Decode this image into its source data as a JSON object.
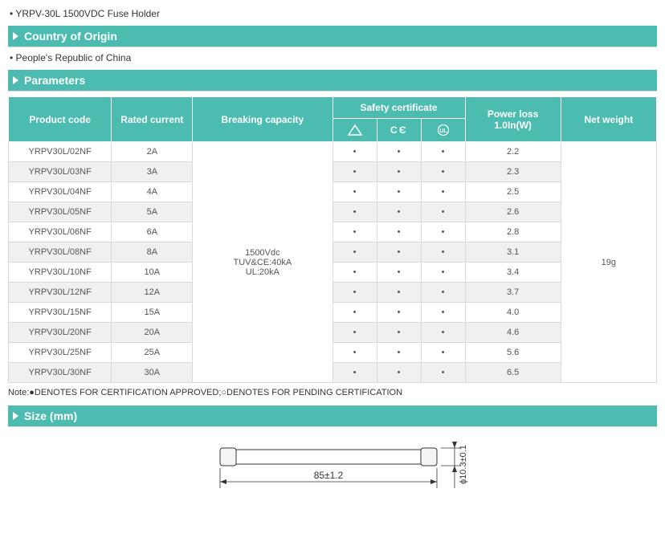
{
  "top_line": "• YRPV-30L 1500VDC Fuse Holder",
  "sections": {
    "origin": {
      "title": "Country of Origin",
      "text": "• People's Republic of China"
    },
    "params": {
      "title": "Parameters"
    },
    "size": {
      "title": "Size (mm)"
    }
  },
  "headers": {
    "product_code": "Product code",
    "rated_current": "Rated current",
    "breaking_capacity": "Breaking capacity",
    "safety_certificate": "Safety certificate",
    "power_loss_top": "Power loss",
    "power_loss_sub": "1.0In(W)",
    "net_weight": "Net weight"
  },
  "breaking_capacity_lines": [
    "1500Vdc",
    "TUV&CE:40kA",
    "UL:20kA"
  ],
  "net_weight_value": "19g",
  "rows": [
    {
      "code": "YRPV30L/02NF",
      "rated": "2A",
      "s1": "•",
      "s2": "•",
      "s3": "•",
      "power": "2.2"
    },
    {
      "code": "YRPV30L/03NF",
      "rated": "3A",
      "s1": "•",
      "s2": "•",
      "s3": "•",
      "power": "2.3"
    },
    {
      "code": "YRPV30L/04NF",
      "rated": "4A",
      "s1": "•",
      "s2": "•",
      "s3": "•",
      "power": "2.5"
    },
    {
      "code": "YRPV30L/05NF",
      "rated": "5A",
      "s1": "•",
      "s2": "•",
      "s3": "•",
      "power": "2.6"
    },
    {
      "code": "YRPV30L/06NF",
      "rated": "6A",
      "s1": "•",
      "s2": "•",
      "s3": "•",
      "power": "2.8"
    },
    {
      "code": "YRPV30L/08NF",
      "rated": "8A",
      "s1": "•",
      "s2": "•",
      "s3": "•",
      "power": "3.1"
    },
    {
      "code": "YRPV30L/10NF",
      "rated": "10A",
      "s1": "•",
      "s2": "•",
      "s3": "•",
      "power": "3.4"
    },
    {
      "code": "YRPV30L/12NF",
      "rated": "12A",
      "s1": "•",
      "s2": "•",
      "s3": "•",
      "power": "3.7"
    },
    {
      "code": "YRPV30L/15NF",
      "rated": "15A",
      "s1": "•",
      "s2": "•",
      "s3": "•",
      "power": "4.0"
    },
    {
      "code": "YRPV30L/20NF",
      "rated": "20A",
      "s1": "•",
      "s2": "•",
      "s3": "•",
      "power": "4.6"
    },
    {
      "code": "YRPV30L/25NF",
      "rated": "25A",
      "s1": "•",
      "s2": "•",
      "s3": "•",
      "power": "5.6"
    },
    {
      "code": "YRPV30L/30NF",
      "rated": "30A",
      "s1": "•",
      "s2": "•",
      "s3": "•",
      "power": "6.5"
    }
  ],
  "note": "Note:●DENOTES FOR CERTIFICATION APPROVED;○DENOTES FOR PENDING CERTIFICATION",
  "size_labels": {
    "length": "85±1.2",
    "diameter": "ϕ10.3±0.1"
  },
  "colors": {
    "accent": "#4cbcb0",
    "header_text": "#ffffff",
    "row_alt_bg": "#f0f0f0",
    "border": "#d9d9d9",
    "body_text": "#555555"
  }
}
